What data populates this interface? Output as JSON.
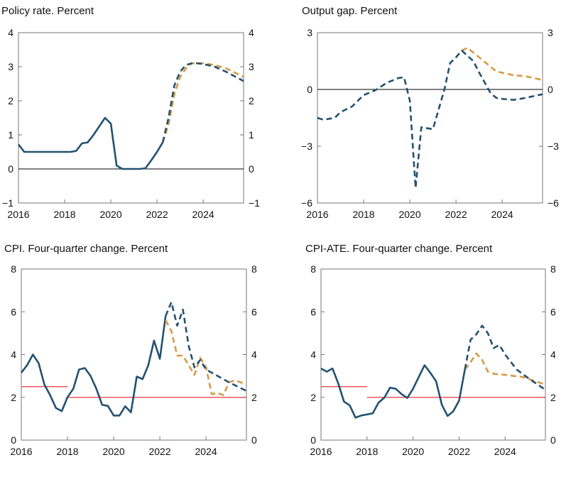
{
  "colors": {
    "history": "#23526f",
    "forecast_current": "#23526f",
    "forecast_previous": "#d69a45",
    "target": "#e8474f",
    "axis": "#777777"
  },
  "chart_data": [
    {
      "type": "line",
      "title": "Policy rate. Percent",
      "ylim": [
        -1,
        4
      ],
      "yticks": [
        -1,
        0,
        1,
        2,
        3,
        4
      ],
      "xlim": [
        2016,
        2025.75
      ],
      "xticks": [
        2016,
        2018,
        2020,
        2022,
        2024
      ],
      "zero_line": true,
      "series": [
        {
          "name": "history",
          "style": "solid",
          "color": "#23526f",
          "points": [
            [
              2016,
              0.72
            ],
            [
              2016.25,
              0.5
            ],
            [
              2016.5,
              0.5
            ],
            [
              2017,
              0.5
            ],
            [
              2017.5,
              0.5
            ],
            [
              2018,
              0.5
            ],
            [
              2018.25,
              0.5
            ],
            [
              2018.5,
              0.53
            ],
            [
              2018.75,
              0.75
            ],
            [
              2019,
              0.78
            ],
            [
              2019.25,
              1.0
            ],
            [
              2019.5,
              1.25
            ],
            [
              2019.75,
              1.5
            ],
            [
              2020,
              1.33
            ],
            [
              2020.25,
              0.1
            ],
            [
              2020.5,
              0
            ],
            [
              2021,
              0
            ],
            [
              2021.25,
              0
            ],
            [
              2021.5,
              0.02
            ],
            [
              2021.75,
              0.25
            ],
            [
              2022,
              0.5
            ],
            [
              2022.25,
              0.78
            ]
          ]
        },
        {
          "name": "previous forecast",
          "style": "dashed",
          "color": "#d69a45",
          "points": [
            [
              2022.25,
              0.78
            ],
            [
              2022.5,
              1.3
            ],
            [
              2022.75,
              2.2
            ],
            [
              2023,
              2.7
            ],
            [
              2023.25,
              2.95
            ],
            [
              2023.5,
              3.1
            ],
            [
              2024,
              3.1
            ],
            [
              2024.5,
              3.05
            ],
            [
              2025,
              2.95
            ],
            [
              2025.75,
              2.7
            ]
          ]
        },
        {
          "name": "current forecast",
          "style": "dashed",
          "color": "#23526f",
          "points": [
            [
              2022.25,
              0.78
            ],
            [
              2022.5,
              1.5
            ],
            [
              2022.75,
              2.45
            ],
            [
              2023,
              2.85
            ],
            [
              2023.25,
              3.05
            ],
            [
              2023.5,
              3.1
            ],
            [
              2023.75,
              3.1
            ],
            [
              2024,
              3.08
            ],
            [
              2024.5,
              3.0
            ],
            [
              2025,
              2.85
            ],
            [
              2025.75,
              2.58
            ]
          ]
        }
      ]
    },
    {
      "type": "line",
      "title": "Output gap. Percent",
      "ylim": [
        -6,
        3
      ],
      "yticks": [
        -6,
        -3,
        0,
        3
      ],
      "xlim": [
        2016,
        2025.75
      ],
      "xticks": [
        2016,
        2018,
        2020,
        2022,
        2024
      ],
      "zero_line": true,
      "series": [
        {
          "name": "previous forecast",
          "style": "dashed",
          "color": "#d69a45",
          "points": [
            [
              2022.25,
              2.05
            ],
            [
              2022.5,
              2.2
            ],
            [
              2023,
              1.7
            ],
            [
              2023.5,
              1.2
            ],
            [
              2023.75,
              0.95
            ],
            [
              2024.5,
              0.75
            ],
            [
              2025,
              0.7
            ],
            [
              2025.75,
              0.5
            ]
          ]
        },
        {
          "name": "current",
          "style": "dashed",
          "color": "#23526f",
          "points": [
            [
              2016,
              -1.5
            ],
            [
              2016.25,
              -1.6
            ],
            [
              2016.75,
              -1.5
            ],
            [
              2017,
              -1.2
            ],
            [
              2017.5,
              -0.9
            ],
            [
              2018,
              -0.3
            ],
            [
              2018.5,
              -0.05
            ],
            [
              2019,
              0.35
            ],
            [
              2019.5,
              0.6
            ],
            [
              2019.75,
              0.65
            ],
            [
              2020,
              -0.6
            ],
            [
              2020.25,
              -5.2
            ],
            [
              2020.5,
              -2.0
            ],
            [
              2021,
              -2.1
            ],
            [
              2021.5,
              0.0
            ],
            [
              2021.75,
              1.4
            ],
            [
              2022,
              1.7
            ],
            [
              2022.25,
              2.05
            ],
            [
              2022.75,
              1.5
            ],
            [
              2023,
              0.9
            ],
            [
              2023.5,
              -0.2
            ],
            [
              2023.75,
              -0.45
            ],
            [
              2024,
              -0.5
            ],
            [
              2024.5,
              -0.55
            ],
            [
              2025,
              -0.45
            ],
            [
              2025.75,
              -0.25
            ]
          ]
        }
      ]
    },
    {
      "type": "line",
      "title": "CPI. Four-quarter change. Percent",
      "ylim": [
        0,
        8
      ],
      "yticks": [
        0,
        2,
        4,
        6,
        8
      ],
      "xlim": [
        2016,
        2025.75
      ],
      "xticks": [
        2016,
        2018,
        2020,
        2022,
        2024
      ],
      "zero_line": false,
      "series": [
        {
          "name": "inflation target",
          "style": "solid-thin",
          "color": "#e8474f",
          "points": [
            [
              2016,
              2.5
            ],
            [
              2018,
              2.5
            ]
          ]
        },
        {
          "name": "inflation target",
          "style": "solid-thin",
          "color": "#e8474f",
          "points": [
            [
              2018,
              2.0
            ],
            [
              2025.75,
              2.0
            ]
          ]
        },
        {
          "name": "history",
          "style": "solid",
          "color": "#23526f",
          "points": [
            [
              2016,
              3.15
            ],
            [
              2016.25,
              3.5
            ],
            [
              2016.5,
              4.0
            ],
            [
              2016.75,
              3.6
            ],
            [
              2017,
              2.6
            ],
            [
              2017.25,
              2.1
            ],
            [
              2017.5,
              1.5
            ],
            [
              2017.75,
              1.35
            ],
            [
              2018,
              2.0
            ],
            [
              2018.25,
              2.4
            ],
            [
              2018.5,
              3.3
            ],
            [
              2018.75,
              3.37
            ],
            [
              2019,
              3.0
            ],
            [
              2019.25,
              2.4
            ],
            [
              2019.5,
              1.65
            ],
            [
              2019.75,
              1.6
            ],
            [
              2020,
              1.15
            ],
            [
              2020.25,
              1.15
            ],
            [
              2020.5,
              1.58
            ],
            [
              2020.75,
              1.3
            ],
            [
              2021,
              2.97
            ],
            [
              2021.25,
              2.85
            ],
            [
              2021.5,
              3.5
            ],
            [
              2021.75,
              4.65
            ],
            [
              2022,
              3.8
            ],
            [
              2022.25,
              5.8
            ]
          ]
        },
        {
          "name": "previous forecast",
          "style": "dashed",
          "color": "#d69a45",
          "points": [
            [
              2022.25,
              5.6
            ],
            [
              2022.5,
              5.1
            ],
            [
              2022.75,
              3.95
            ],
            [
              2023,
              3.95
            ],
            [
              2023.5,
              3.05
            ],
            [
              2023.75,
              3.85
            ],
            [
              2024,
              3.4
            ],
            [
              2024.25,
              2.15
            ],
            [
              2024.5,
              2.2
            ],
            [
              2024.75,
              2.1
            ],
            [
              2025,
              2.7
            ],
            [
              2025.25,
              2.8
            ],
            [
              2025.75,
              2.6
            ]
          ]
        },
        {
          "name": "current forecast",
          "style": "dashed",
          "color": "#23526f",
          "points": [
            [
              2022.25,
              5.8
            ],
            [
              2022.5,
              6.45
            ],
            [
              2022.75,
              5.35
            ],
            [
              2023,
              6.1
            ],
            [
              2023.25,
              4.4
            ],
            [
              2023.5,
              3.4
            ],
            [
              2023.75,
              3.75
            ],
            [
              2024,
              3.3
            ],
            [
              2024.5,
              3.0
            ],
            [
              2025,
              2.7
            ],
            [
              2025.75,
              2.3
            ]
          ]
        }
      ]
    },
    {
      "type": "line",
      "title": "CPI-ATE. Four-quarter change. Percent",
      "ylim": [
        0,
        8
      ],
      "yticks": [
        0,
        2,
        4,
        6,
        8
      ],
      "xlim": [
        2016,
        2025.75
      ],
      "xticks": [
        2016,
        2018,
        2020,
        2022,
        2024
      ],
      "zero_line": false,
      "series": [
        {
          "name": "inflation target",
          "style": "solid-thin",
          "color": "#e8474f",
          "points": [
            [
              2016,
              2.5
            ],
            [
              2018,
              2.5
            ]
          ]
        },
        {
          "name": "inflation target",
          "style": "solid-thin",
          "color": "#e8474f",
          "points": [
            [
              2018,
              2.0
            ],
            [
              2025.75,
              2.0
            ]
          ]
        },
        {
          "name": "history",
          "style": "solid",
          "color": "#23526f",
          "points": [
            [
              2016,
              3.35
            ],
            [
              2016.25,
              3.2
            ],
            [
              2016.5,
              3.35
            ],
            [
              2016.75,
              2.65
            ],
            [
              2017,
              1.8
            ],
            [
              2017.25,
              1.62
            ],
            [
              2017.5,
              1.05
            ],
            [
              2017.75,
              1.15
            ],
            [
              2018,
              1.2
            ],
            [
              2018.25,
              1.25
            ],
            [
              2018.5,
              1.75
            ],
            [
              2018.75,
              1.98
            ],
            [
              2019,
              2.45
            ],
            [
              2019.25,
              2.4
            ],
            [
              2019.5,
              2.15
            ],
            [
              2019.75,
              1.97
            ],
            [
              2020,
              2.4
            ],
            [
              2020.25,
              2.95
            ],
            [
              2020.5,
              3.5
            ],
            [
              2020.75,
              3.15
            ],
            [
              2021,
              2.75
            ],
            [
              2021.25,
              1.65
            ],
            [
              2021.5,
              1.13
            ],
            [
              2021.75,
              1.35
            ],
            [
              2022,
              1.85
            ],
            [
              2022.25,
              3.3
            ]
          ]
        },
        {
          "name": "previous forecast",
          "style": "dashed",
          "color": "#d69a45",
          "points": [
            [
              2022.25,
              3.3
            ],
            [
              2022.5,
              3.65
            ],
            [
              2022.75,
              4.05
            ],
            [
              2023,
              3.75
            ],
            [
              2023.25,
              3.2
            ],
            [
              2023.5,
              3.1
            ],
            [
              2024,
              3.05
            ],
            [
              2024.75,
              2.95
            ],
            [
              2025.75,
              2.6
            ]
          ]
        },
        {
          "name": "current forecast",
          "style": "dashed",
          "color": "#23526f",
          "points": [
            [
              2022.25,
              3.3
            ],
            [
              2022.5,
              4.7
            ],
            [
              2022.75,
              4.95
            ],
            [
              2023,
              5.35
            ],
            [
              2023.25,
              5.0
            ],
            [
              2023.5,
              4.3
            ],
            [
              2023.75,
              4.45
            ],
            [
              2024,
              4.0
            ],
            [
              2024.5,
              3.3
            ],
            [
              2025,
              2.9
            ],
            [
              2025.75,
              2.35
            ]
          ]
        }
      ]
    }
  ]
}
